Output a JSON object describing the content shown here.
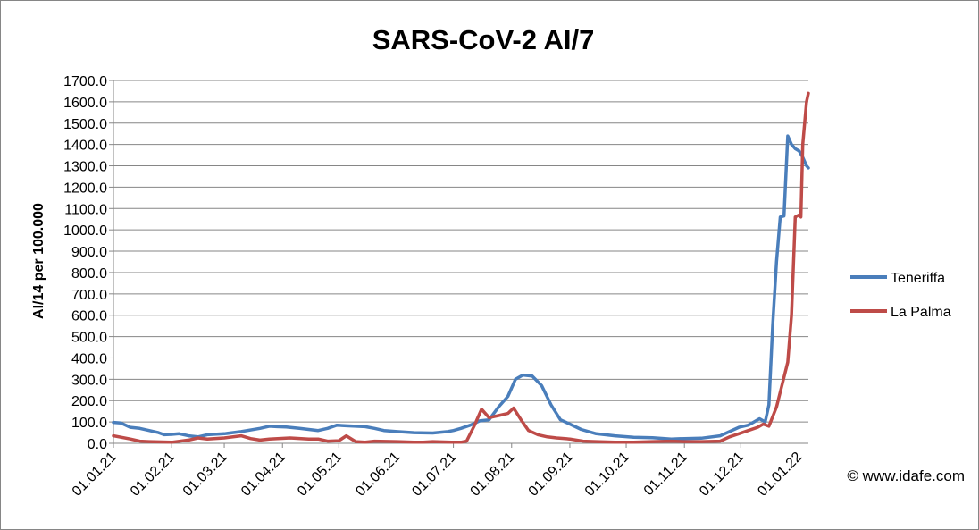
{
  "chart_data": {
    "type": "line",
    "title": "SARS-CoV-2 AI/7",
    "xlabel": "",
    "ylabel": "AI/14 per 100.000",
    "ylim": [
      0,
      1700
    ],
    "yticks": [
      "0.0",
      "100.0",
      "200.0",
      "300.0",
      "400.0",
      "500.0",
      "600.0",
      "700.0",
      "800.0",
      "900.0",
      "1000.0",
      "1100.0",
      "1200.0",
      "1300.0",
      "1400.0",
      "1500.0",
      "1600.0",
      "1700.0"
    ],
    "xticks": [
      "01.01.21",
      "01.02.21",
      "01.03.21",
      "01.04.21",
      "01.05.21",
      "01.06.21",
      "01.07.21",
      "01.08.21",
      "01.09.21",
      "01.10.21",
      "01.11.21",
      "01.12.21",
      "01.01.22"
    ],
    "grid": "horizontal",
    "legend_position": "right",
    "x_start_date": "2021-01-01",
    "x_end_date": "2022-01-06",
    "series": [
      {
        "name": "Teneriffa",
        "color": "#4a7ebb",
        "x": [
          "2021-01-01",
          "2021-01-05",
          "2021-01-10",
          "2021-01-15",
          "2021-01-20",
          "2021-01-25",
          "2021-01-28",
          "2021-02-01",
          "2021-02-05",
          "2021-02-10",
          "2021-02-15",
          "2021-02-20",
          "2021-03-01",
          "2021-03-10",
          "2021-03-20",
          "2021-03-25",
          "2021-03-29",
          "2021-04-03",
          "2021-04-10",
          "2021-04-20",
          "2021-04-25",
          "2021-04-30",
          "2021-05-05",
          "2021-05-10",
          "2021-05-15",
          "2021-05-20",
          "2021-05-25",
          "2021-06-01",
          "2021-06-10",
          "2021-06-20",
          "2021-06-28",
          "2021-07-01",
          "2021-07-05",
          "2021-07-10",
          "2021-07-15",
          "2021-07-20",
          "2021-07-25",
          "2021-07-30",
          "2021-08-03",
          "2021-08-07",
          "2021-08-12",
          "2021-08-17",
          "2021-08-22",
          "2021-08-27",
          "2021-09-01",
          "2021-09-07",
          "2021-09-15",
          "2021-09-25",
          "2021-10-05",
          "2021-10-15",
          "2021-10-25",
          "2021-11-01",
          "2021-11-10",
          "2021-11-20",
          "2021-11-25",
          "2021-11-30",
          "2021-12-05",
          "2021-12-08",
          "2021-12-11",
          "2021-12-14",
          "2021-12-16",
          "2021-12-18",
          "2021-12-20",
          "2021-12-22",
          "2021-12-24",
          "2021-12-26",
          "2021-12-28",
          "2021-12-30",
          "2022-01-01",
          "2022-01-03",
          "2022-01-05",
          "2022-01-06"
        ],
        "values": [
          98,
          95,
          75,
          70,
          60,
          50,
          40,
          42,
          45,
          35,
          30,
          40,
          45,
          55,
          70,
          80,
          78,
          76,
          70,
          60,
          70,
          85,
          82,
          80,
          78,
          70,
          60,
          55,
          50,
          48,
          55,
          60,
          70,
          85,
          105,
          110,
          170,
          220,
          300,
          320,
          315,
          270,
          180,
          110,
          90,
          65,
          45,
          35,
          28,
          26,
          20,
          22,
          24,
          35,
          55,
          75,
          85,
          100,
          115,
          100,
          180,
          550,
          850,
          1060,
          1065,
          1440,
          1400,
          1380,
          1370,
          1340,
          1300,
          1290
        ],
        "unit_note": ""
      },
      {
        "name": "La Palma",
        "color": "#be4b48",
        "x": [
          "2021-01-01",
          "2021-01-10",
          "2021-01-15",
          "2021-01-20",
          "2021-02-01",
          "2021-02-10",
          "2021-02-15",
          "2021-02-20",
          "2021-03-01",
          "2021-03-10",
          "2021-03-15",
          "2021-03-20",
          "2021-03-25",
          "2021-04-05",
          "2021-04-15",
          "2021-04-20",
          "2021-04-25",
          "2021-05-01",
          "2021-05-05",
          "2021-05-10",
          "2021-05-15",
          "2021-05-20",
          "2021-06-01",
          "2021-06-10",
          "2021-06-15",
          "2021-06-20",
          "2021-06-30",
          "2021-07-05",
          "2021-07-08",
          "2021-07-12",
          "2021-07-16",
          "2021-07-20",
          "2021-07-25",
          "2021-07-30",
          "2021-08-02",
          "2021-08-06",
          "2021-08-10",
          "2021-08-15",
          "2021-08-20",
          "2021-08-25",
          "2021-09-01",
          "2021-09-08",
          "2021-09-15",
          "2021-09-25",
          "2021-10-05",
          "2021-10-15",
          "2021-10-25",
          "2021-11-01",
          "2021-11-10",
          "2021-11-20",
          "2021-11-25",
          "2021-11-30",
          "2021-12-05",
          "2021-12-10",
          "2021-12-13",
          "2021-12-16",
          "2021-12-20",
          "2021-12-24",
          "2021-12-26",
          "2021-12-28",
          "2021-12-30",
          "2022-01-01",
          "2022-01-02",
          "2022-01-03",
          "2022-01-05",
          "2022-01-06"
        ],
        "values": [
          35,
          20,
          10,
          8,
          5,
          15,
          25,
          20,
          25,
          35,
          22,
          15,
          20,
          25,
          20,
          20,
          10,
          12,
          35,
          8,
          5,
          10,
          8,
          5,
          5,
          8,
          5,
          5,
          10,
          80,
          160,
          120,
          130,
          140,
          165,
          110,
          60,
          40,
          30,
          25,
          20,
          10,
          8,
          5,
          5,
          8,
          10,
          8,
          8,
          10,
          30,
          45,
          60,
          75,
          90,
          80,
          170,
          310,
          380,
          600,
          1060,
          1070,
          1060,
          1400,
          1600,
          1640
        ]
      }
    ],
    "annotation": "© www.idafe.com"
  }
}
